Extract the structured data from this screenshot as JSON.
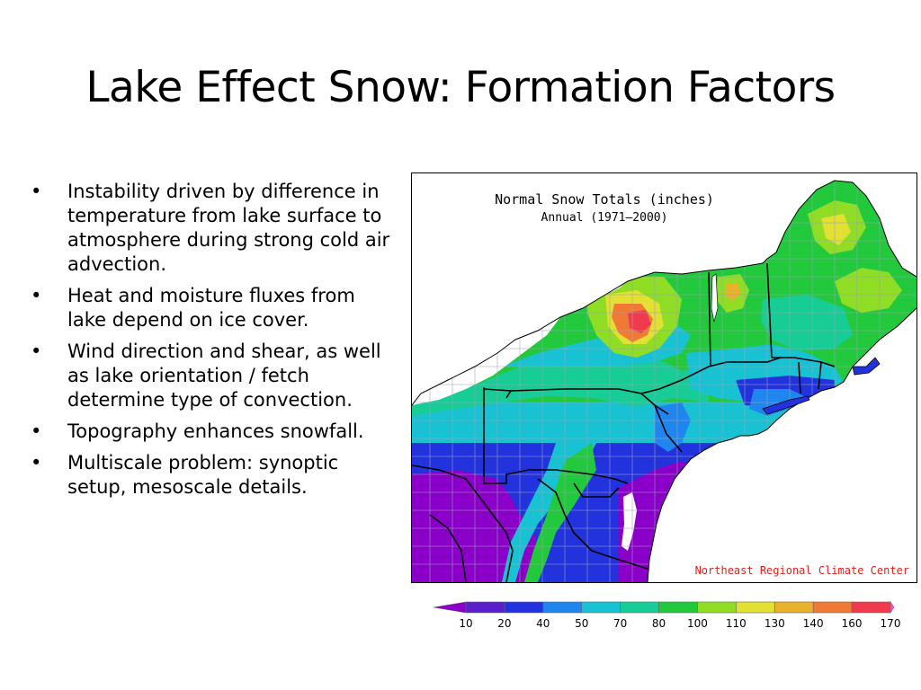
{
  "slide": {
    "title": "Lake Effect Snow: Formation Factors",
    "bullets": [
      "Instability driven by difference in temperature from lake surface to atmosphere during strong cold air advection.",
      "Heat and moisture fluxes from lake depend on ice cover.",
      "Wind direction and shear, as well as lake orientation / fetch determine type of convection.",
      "Topography enhances snowfall.",
      "Multiscale problem: synoptic setup, mesoscale details."
    ],
    "bullet_symbol": "•"
  },
  "map": {
    "title": "Normal Snow Totals (inches)",
    "subtitle": "Annual (1971–2000)",
    "credit": "Northeast Regional Climate Center"
  },
  "legend": {
    "labels": [
      "10",
      "20",
      "40",
      "50",
      "70",
      "80",
      "100",
      "110",
      "130",
      "140",
      "160",
      "170"
    ],
    "colors": [
      "#8b00c8",
      "#5a1fc8",
      "#2233dd",
      "#1f86f0",
      "#18c2d2",
      "#18cc96",
      "#22c93c",
      "#8fdd25",
      "#e2e033",
      "#e8b12e",
      "#f07a35",
      "#f03a4e",
      "#ff4fd2"
    ]
  }
}
